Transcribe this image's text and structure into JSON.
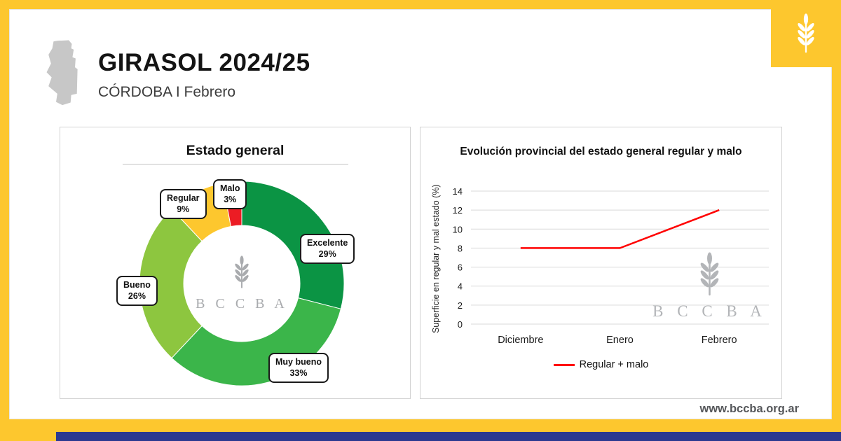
{
  "header": {
    "title": "GIRASOL 2024/25",
    "subtitle": "CÓRDOBA I Febrero"
  },
  "brand": {
    "letters": "B C C B A",
    "website": "www.bccba.org.ar"
  },
  "colors": {
    "accent_yellow": "#FDC72E",
    "footer_blue": "#2B3990",
    "line_red": "#FF0000",
    "watermark_gray": "#B3B5B8"
  },
  "chart_data": [
    {
      "type": "pie",
      "subtype": "donut",
      "title": "Estado general",
      "labels": [
        "Excelente",
        "Muy bueno",
        "Bueno",
        "Regular",
        "Malo"
      ],
      "values": [
        29,
        33,
        26,
        9,
        3
      ],
      "value_labels": [
        "29%",
        "33%",
        "26%",
        "9%",
        "3%"
      ],
      "colors": [
        "#0B9444",
        "#3BB54A",
        "#8DC63F",
        "#FDC72E",
        "#EC1C24"
      ],
      "start_angle_deg": -90,
      "direction": "clockwise",
      "center_text": "B C C B A"
    },
    {
      "type": "line",
      "title": "Evolución provincial del estado general regular y malo",
      "categories": [
        "Diciembre",
        "Enero",
        "Febrero"
      ],
      "series": [
        {
          "name": "Regular + malo",
          "values": [
            8,
            8,
            12
          ],
          "color": "#FF0000"
        }
      ],
      "xlabel": "",
      "ylabel": "Superficie en regular y mal estado (%)",
      "ylim": [
        0,
        14
      ],
      "ytick_step": 2,
      "grid": true,
      "legend_position": "bottom"
    }
  ]
}
